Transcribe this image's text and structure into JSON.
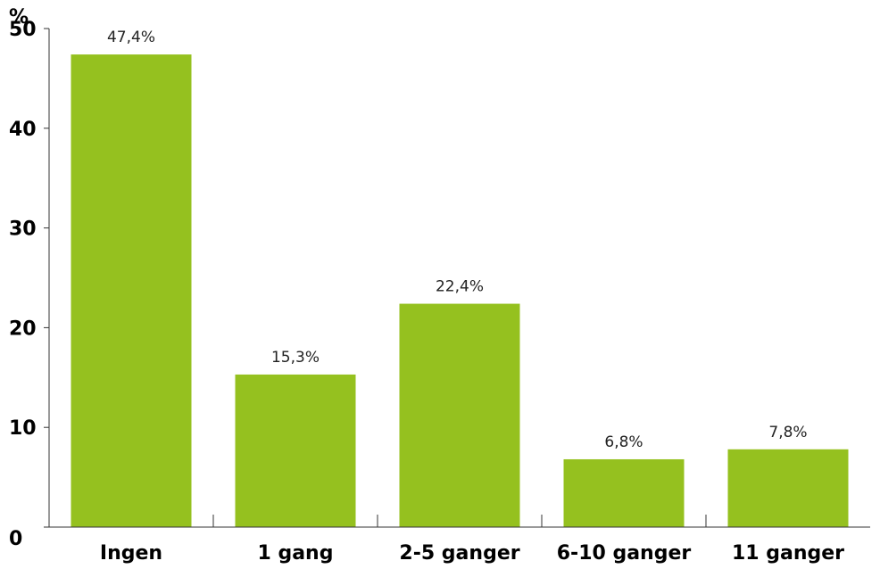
{
  "chart_data": {
    "type": "bar",
    "ylabel": "%",
    "categories": [
      "Ingen",
      "1 gang",
      "2-5 ganger",
      "6-10 ganger",
      "11 ganger"
    ],
    "values": [
      47.4,
      15.3,
      22.4,
      6.8,
      7.8
    ],
    "data_labels": [
      "47,4%",
      "15,3%",
      "22,4%",
      "6,8%",
      "7,8%"
    ],
    "ylim": [
      0,
      50
    ],
    "yticks": [
      0,
      10,
      20,
      30,
      40,
      50
    ],
    "bar_color": "#95c11f",
    "grid": false,
    "legend": "none"
  }
}
